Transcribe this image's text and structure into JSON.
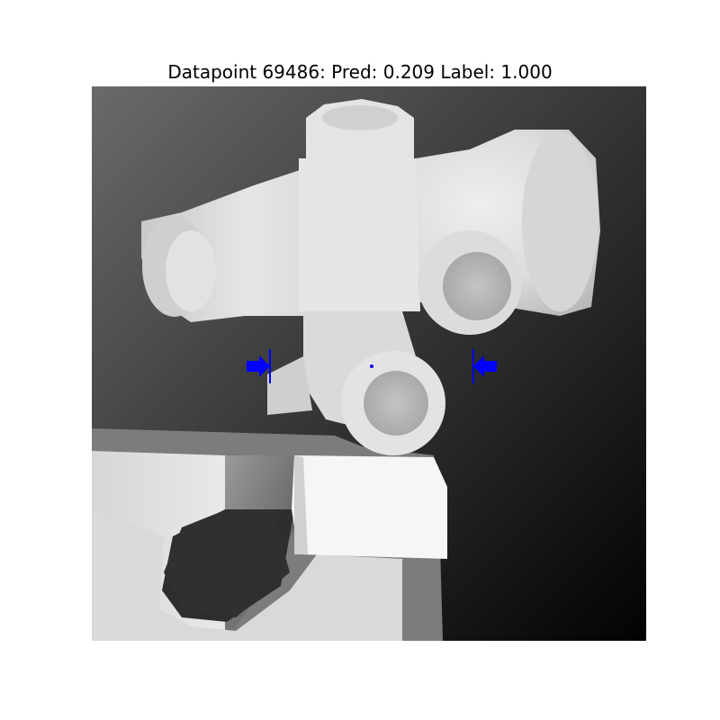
{
  "figure": {
    "title": "Datapoint 69486: Pred: 0.209 Label: 1.000",
    "datapoint_id": 69486,
    "prediction": 0.209,
    "label": 1.0
  },
  "image": {
    "description_kind": "grayscale depth image",
    "marker_color": "#0000ff"
  }
}
